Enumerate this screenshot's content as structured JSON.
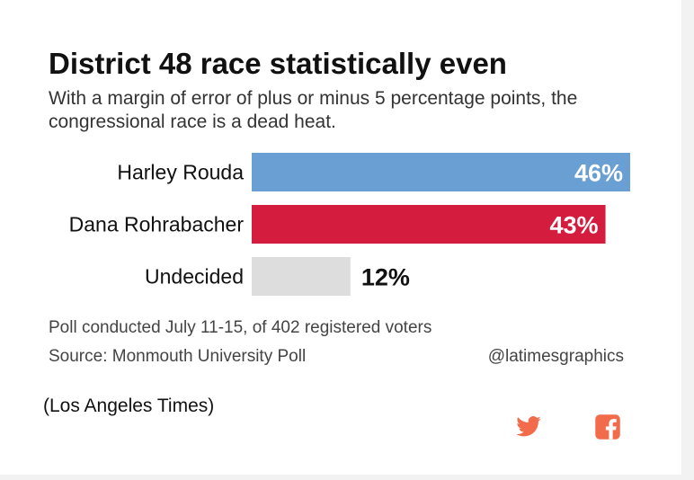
{
  "headline": "District 48 race statistically even",
  "subtitle": "With a margin of error of plus or minus 5 percentage points, the congressional race is a dead heat.",
  "chart_data": {
    "type": "bar",
    "orientation": "horizontal",
    "categories": [
      "Harley Rouda",
      "Dana Rohrabacher",
      "Undecided"
    ],
    "values": [
      46,
      43,
      12
    ],
    "value_labels": [
      "46%",
      "43%",
      "12%"
    ],
    "colors": [
      "#6a9fd4",
      "#d41c3e",
      "#dddddd"
    ],
    "xlim": [
      0,
      46
    ],
    "grid": false,
    "legend": "none"
  },
  "footnote": "Poll conducted July 11-15, of 402 registered voters",
  "source": "Source: Monmouth University Poll",
  "credit": "@latimesgraphics",
  "caption": "(Los Angeles Times)",
  "share": {
    "twitter_icon": "twitter-icon",
    "facebook_icon": "facebook-icon",
    "color": "#f26b4b"
  }
}
